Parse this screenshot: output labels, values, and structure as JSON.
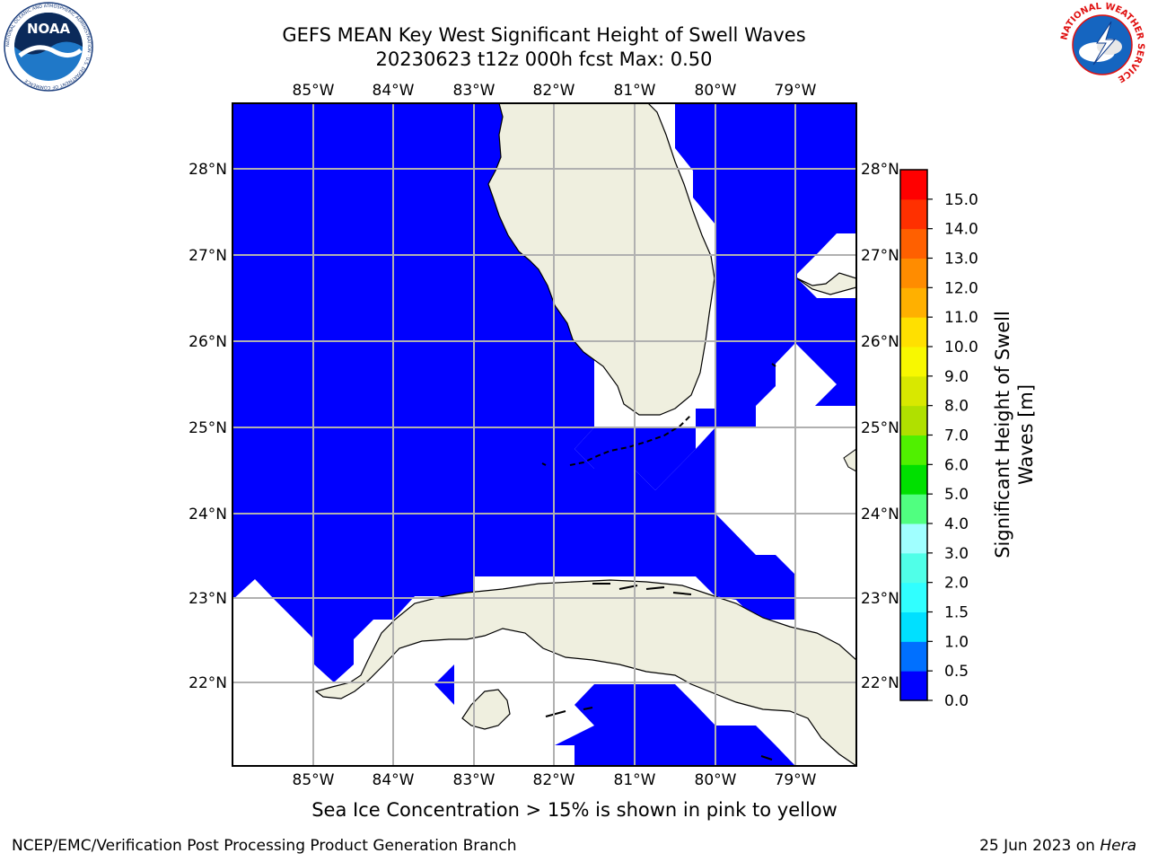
{
  "header": {
    "title_line1": "GEFS MEAN Key West Significant Height of Swell Waves",
    "title_line2": "20230623 t12z 000h fcst   Max: 0.50"
  },
  "logos": {
    "noaa_text": "NOAA",
    "noaa_ring_text": "NATIONAL OCEANIC AND ATMOSPHERIC ADMINISTRATION · U.S. DEPARTMENT OF COMMERCE",
    "nws_ring_text": "NATIONAL WEATHER SERVICE"
  },
  "map": {
    "lon_labels": [
      "85°W",
      "84°W",
      "83°W",
      "82°W",
      "81°W",
      "80°W",
      "79°W"
    ],
    "lat_labels": [
      "28°N",
      "27°N",
      "26°N",
      "25°N",
      "24°N",
      "23°N",
      "22°N"
    ],
    "ocean_color": "#0000ff",
    "land_color": "#efefdf",
    "grid_color": "#b0b0b0"
  },
  "colorbar": {
    "title_line1": "Significant Height of Swell",
    "title_line2": "Waves [m]",
    "tick_labels": [
      "0.0",
      "0.5",
      "1.0",
      "1.5",
      "2.0",
      "3.0",
      "4.0",
      "5.0",
      "6.0",
      "7.0",
      "8.0",
      "9.0",
      "10.0",
      "11.0",
      "12.0",
      "13.0",
      "14.0",
      "15.0"
    ],
    "colors": [
      "#0000ff",
      "#0070ff",
      "#00e0ff",
      "#30ffff",
      "#50ffe8",
      "#a0ffff",
      "#50ff80",
      "#00e000",
      "#50f000",
      "#b0e000",
      "#d8e800",
      "#f8f800",
      "#ffe000",
      "#ffb000",
      "#ff8c00",
      "#ff6000",
      "#ff3000",
      "#ff0000"
    ]
  },
  "subtitle": "Sea Ice Concentration > 15% is shown in pink to yellow",
  "footer": {
    "left": "NCEP/EMC/Verification Post Processing Product Generation Branch",
    "right_prefix": "25 Jun 2023 on ",
    "right_host": "Hera"
  }
}
